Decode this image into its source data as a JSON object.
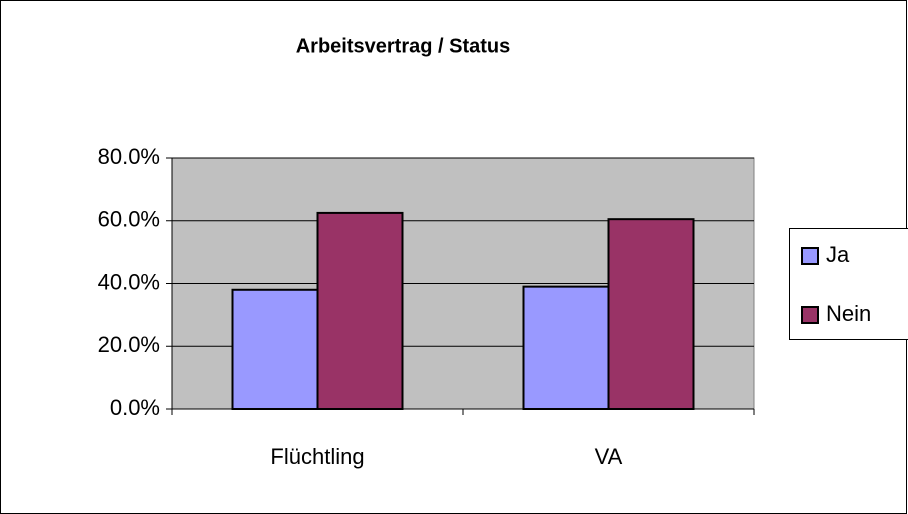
{
  "chart_data": {
    "type": "bar",
    "title": "Arbeitsvertrag / Status",
    "categories": [
      "Flüchtling",
      "VA"
    ],
    "series": [
      {
        "name": "Ja",
        "color": "#9999ff",
        "values": [
          38,
          39
        ]
      },
      {
        "name": "Nein",
        "color": "#993366",
        "values": [
          62.5,
          60.5
        ]
      }
    ],
    "ylim": [
      0,
      80
    ],
    "yticks": [
      {
        "value": 0,
        "label": "0.0%"
      },
      {
        "value": 20,
        "label": "20.0%"
      },
      {
        "value": 40,
        "label": "40.0%"
      },
      {
        "value": 60,
        "label": "60.0%"
      },
      {
        "value": 80,
        "label": "80.0%"
      }
    ],
    "grid": true,
    "legend": "right"
  }
}
